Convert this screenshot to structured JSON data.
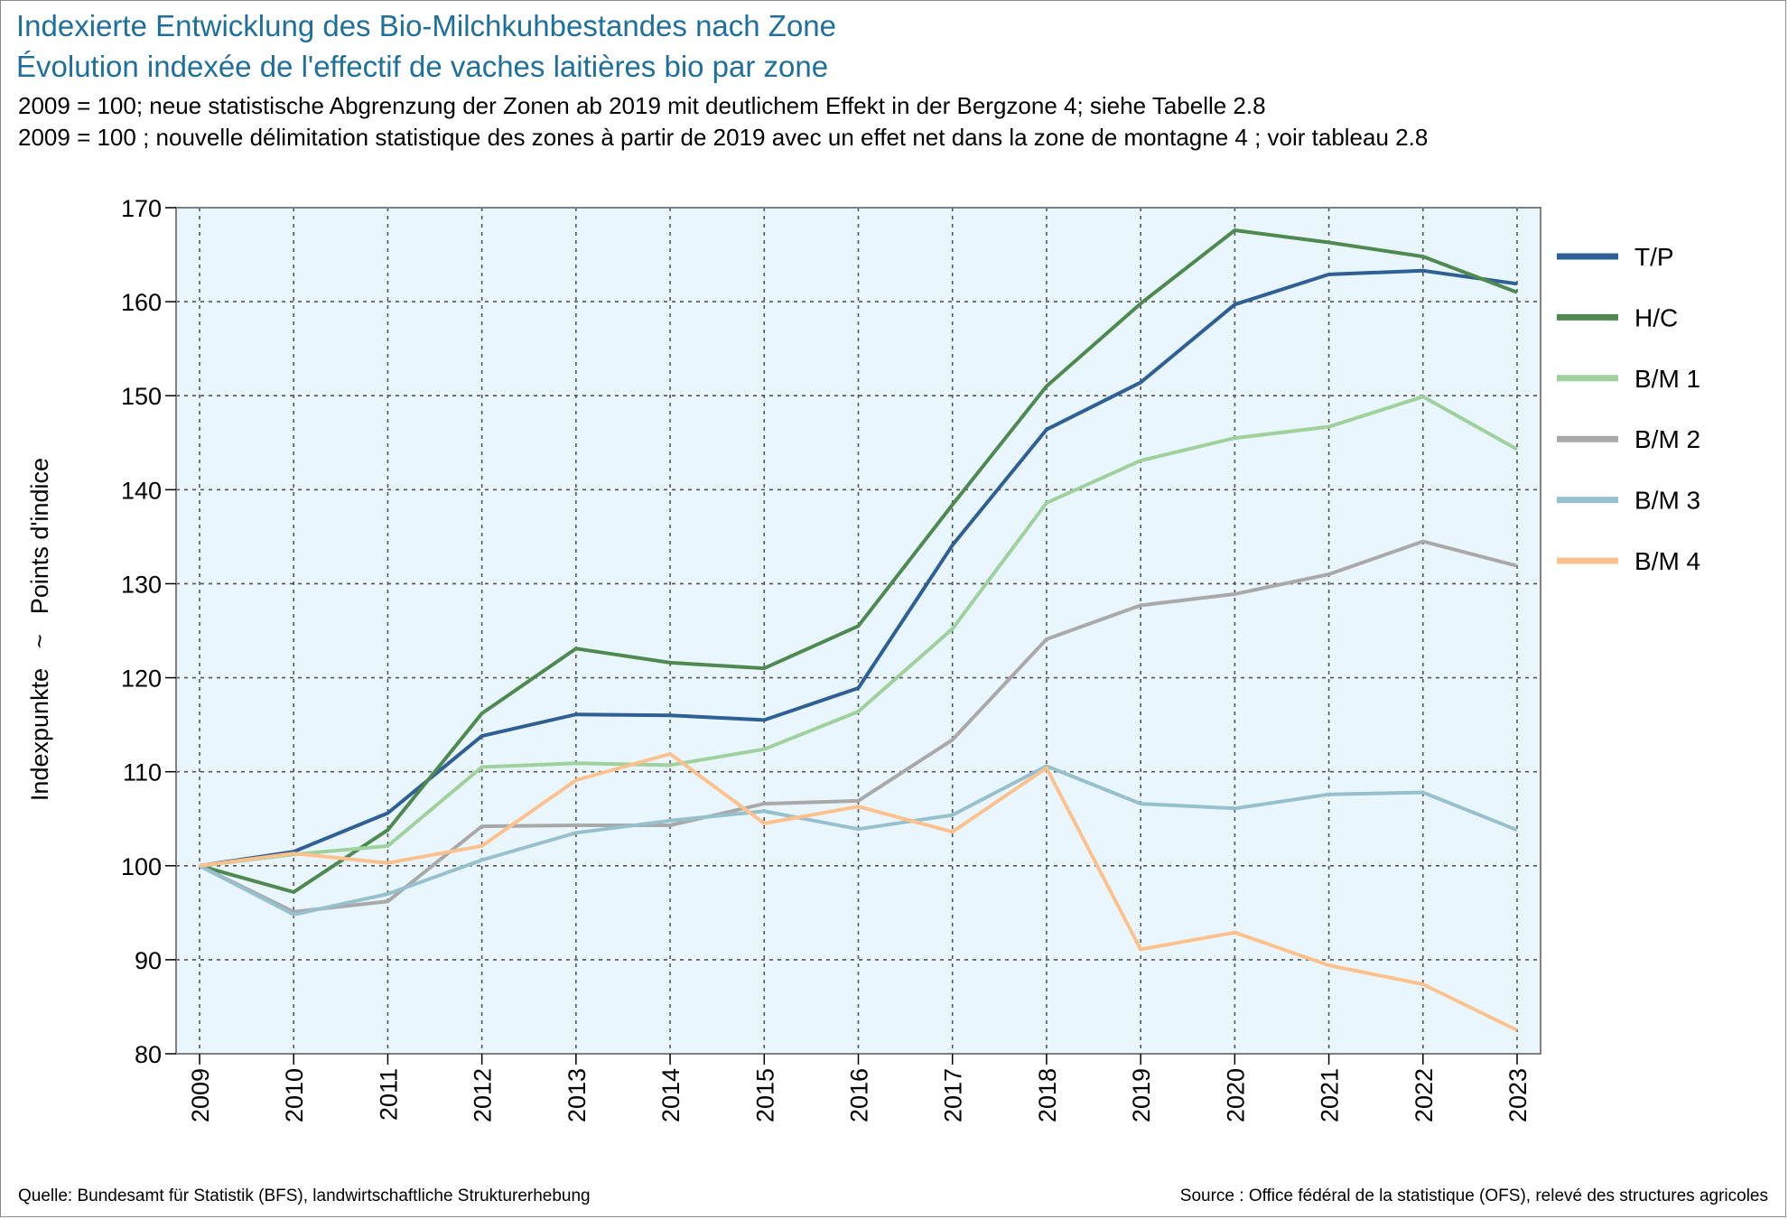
{
  "header": {
    "title_de": "Indexierte Entwicklung des Bio-Milchkuhbestandes nach Zone",
    "title_fr": "Évolution indexée de l'effectif de vaches laitières bio par zone",
    "subtitle_de": "2009 = 100; neue statistische Abgrenzung der Zonen ab 2019 mit deutlichem Effekt in der Bergzone 4; siehe Tabelle 2.8",
    "subtitle_fr": "2009 = 100 ; nouvelle délimitation statistique des zones à partir de 2019 avec un effet net dans la zone de montagne 4 ; voir tableau 2.8"
  },
  "footer": {
    "source_de": "Quelle: Bundesamt für Statistik (BFS), landwirtschaftliche Strukturerhebung",
    "source_fr": "Source : Office fédéral de la statistique (OFS), relevé des structures agricoles"
  },
  "chart_data": {
    "type": "line",
    "ylabel_de": "Indexpunkte",
    "ylabel_sep": "~",
    "ylabel_fr": "Points d'indice",
    "x": [
      "2009",
      "2010",
      "2011",
      "2012",
      "2013",
      "2014",
      "2015",
      "2016",
      "2017",
      "2018",
      "2019",
      "2020",
      "2021",
      "2022",
      "2023"
    ],
    "ylim": [
      80,
      170
    ],
    "yticks": [
      80,
      90,
      100,
      110,
      120,
      130,
      140,
      150,
      160,
      170
    ],
    "grid": true,
    "legend_position": "right",
    "plot_background": "#eaf6fd",
    "series": [
      {
        "name": "T/P",
        "color": "#2e5f95",
        "values": [
          100,
          101.5,
          105.6,
          113.8,
          116.1,
          116.0,
          115.5,
          118.9,
          134.1,
          146.4,
          151.4,
          159.7,
          162.9,
          163.3,
          161.9
        ]
      },
      {
        "name": "H/C",
        "color": "#4e8a4f",
        "values": [
          100,
          97.2,
          103.8,
          116.2,
          123.1,
          121.6,
          121.0,
          125.5,
          138.4,
          151.0,
          159.8,
          167.6,
          166.3,
          164.8,
          161.0
        ]
      },
      {
        "name": "B/M 1",
        "color": "#9ed19b",
        "values": [
          100,
          101.2,
          102.1,
          110.5,
          110.9,
          110.7,
          112.4,
          116.4,
          125.2,
          138.6,
          143.1,
          145.5,
          146.7,
          149.9,
          144.3
        ]
      },
      {
        "name": "B/M 2",
        "color": "#a9a9a9",
        "values": [
          100,
          95.1,
          96.2,
          104.2,
          104.3,
          104.3,
          106.6,
          106.9,
          113.4,
          124.1,
          127.7,
          128.9,
          131.0,
          134.5,
          131.9
        ]
      },
      {
        "name": "B/M 3",
        "color": "#97c0cf",
        "values": [
          100,
          94.8,
          97.0,
          100.6,
          103.5,
          104.8,
          105.8,
          103.9,
          105.4,
          110.6,
          106.6,
          106.1,
          107.6,
          107.8,
          103.8
        ]
      },
      {
        "name": "B/M 4",
        "color": "#fdc18d",
        "values": [
          100,
          101.3,
          100.3,
          102.1,
          109.1,
          111.9,
          104.5,
          106.3,
          103.6,
          110.4,
          91.1,
          92.9,
          89.4,
          87.4,
          82.5
        ]
      }
    ]
  }
}
